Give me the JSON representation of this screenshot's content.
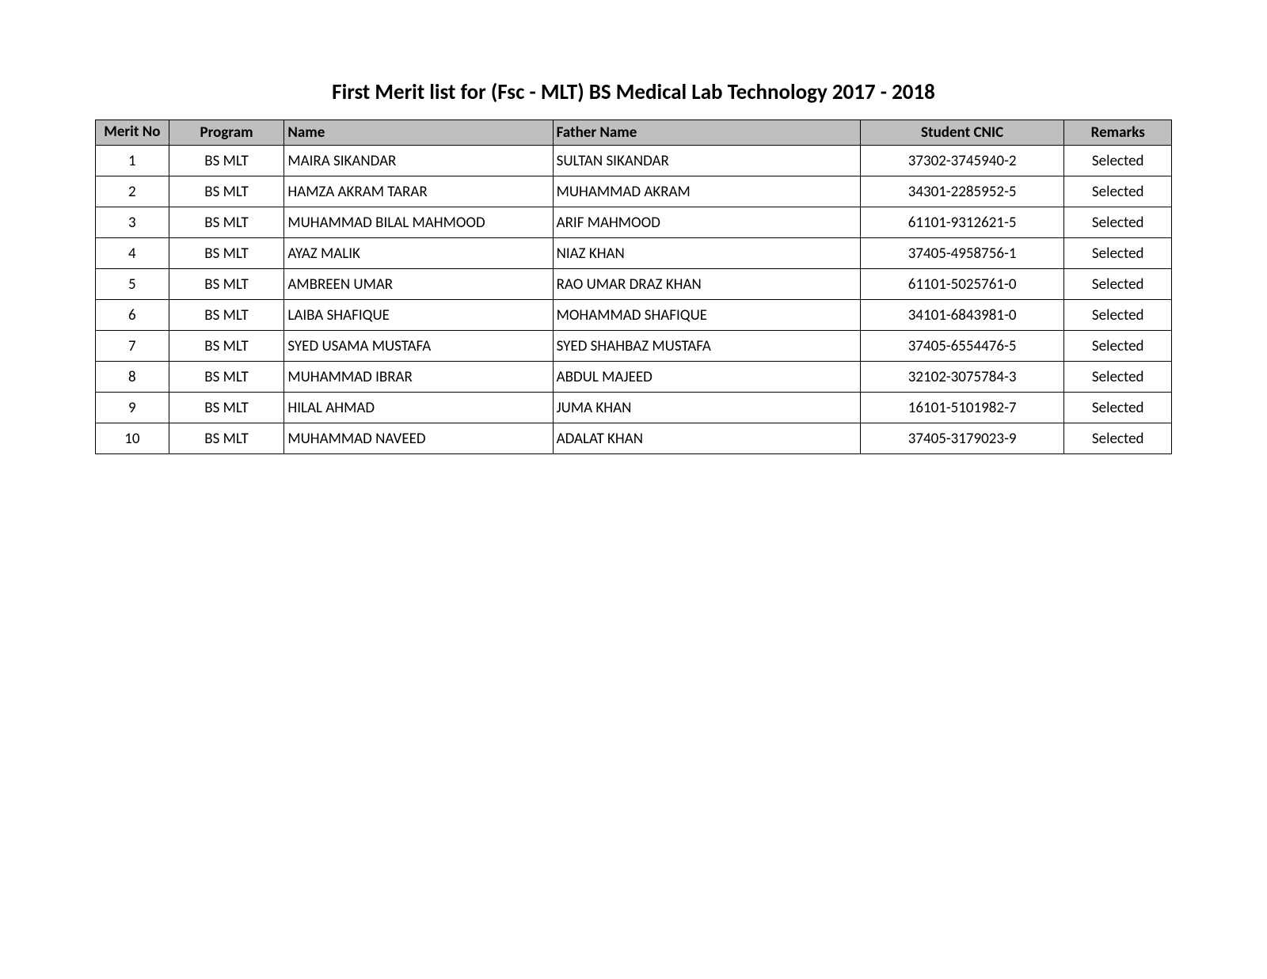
{
  "title": "First Merit list for (Fsc - MLT) BS Medical Lab Technology 2017 - 2018",
  "table": {
    "columns": [
      {
        "label": "Merit No",
        "class": "col-merit"
      },
      {
        "label": "Program",
        "class": "col-program"
      },
      {
        "label": "Name",
        "class": "col-name"
      },
      {
        "label": "Father Name",
        "class": "col-father"
      },
      {
        "label": "Student CNIC",
        "class": "col-cnic"
      },
      {
        "label": "Remarks",
        "class": "col-remarks"
      }
    ],
    "rows": [
      {
        "merit": "1",
        "program": "BS MLT",
        "name": "MAIRA SIKANDAR",
        "father": "SULTAN SIKANDAR",
        "cnic": "37302-3745940-2",
        "remarks": "Selected"
      },
      {
        "merit": "2",
        "program": "BS MLT",
        "name": "HAMZA AKRAM TARAR",
        "father": "MUHAMMAD AKRAM",
        "cnic": "34301-2285952-5",
        "remarks": "Selected"
      },
      {
        "merit": "3",
        "program": "BS MLT",
        "name": "MUHAMMAD BILAL MAHMOOD",
        "father": "ARIF MAHMOOD",
        "cnic": "61101-9312621-5",
        "remarks": "Selected"
      },
      {
        "merit": "4",
        "program": "BS MLT",
        "name": "AYAZ MALIK",
        "father": "NIAZ KHAN",
        "cnic": "37405-4958756-1",
        "remarks": "Selected"
      },
      {
        "merit": "5",
        "program": "BS MLT",
        "name": "AMBREEN UMAR",
        "father": "RAO UMAR DRAZ KHAN",
        "cnic": "61101-5025761-0",
        "remarks": "Selected"
      },
      {
        "merit": "6",
        "program": "BS MLT",
        "name": "LAIBA SHAFIQUE",
        "father": "MOHAMMAD SHAFIQUE",
        "cnic": "34101-6843981-0",
        "remarks": "Selected"
      },
      {
        "merit": "7",
        "program": "BS MLT",
        "name": "SYED USAMA MUSTAFA",
        "father": "SYED SHAHBAZ MUSTAFA",
        "cnic": "37405-6554476-5",
        "remarks": "Selected"
      },
      {
        "merit": "8",
        "program": "BS MLT",
        "name": "MUHAMMAD IBRAR",
        "father": "ABDUL MAJEED",
        "cnic": "32102-3075784-3",
        "remarks": "Selected"
      },
      {
        "merit": "9",
        "program": "BS MLT",
        "name": "HILAL AHMAD",
        "father": "JUMA KHAN",
        "cnic": "16101-5101982-7",
        "remarks": "Selected"
      },
      {
        "merit": "10",
        "program": "BS MLT",
        "name": "MUHAMMAD NAVEED",
        "father": "ADALAT KHAN",
        "cnic": "37405-3179023-9",
        "remarks": "Selected"
      }
    ],
    "header_bg": "#bfbfbf",
    "border_color": "#000000",
    "font_family": "Calibri, Arial, sans-serif",
    "title_fontsize": 27,
    "cell_fontsize": 19
  }
}
